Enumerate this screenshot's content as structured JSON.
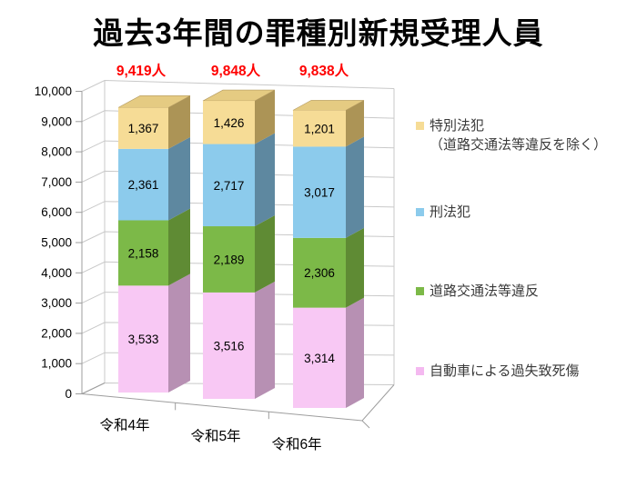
{
  "title": "過去3年間の罪種別新規受理人員",
  "chart_data": {
    "type": "bar",
    "stacked": true,
    "effect_3d": true,
    "title": "過去3年間の罪種別新規受理人員",
    "categories": [
      "令和4年",
      "令和5年",
      "令和6年"
    ],
    "series": [
      {
        "name": "自動車による過失致死傷",
        "values": [
          3533,
          3516,
          3314
        ],
        "labels": [
          "3,533",
          "3,516",
          "3,314"
        ],
        "color_front": "#F8C8F4",
        "color_side": "#B790B3"
      },
      {
        "name": "道路交通法等違反",
        "values": [
          2158,
          2189,
          2306
        ],
        "labels": [
          "2,158",
          "2,189",
          "2,306"
        ],
        "color_front": "#7CB948",
        "color_side": "#5F8B34"
      },
      {
        "name": "刑法犯",
        "values": [
          2361,
          2717,
          3017
        ],
        "labels": [
          "2,361",
          "2,717",
          "3,017"
        ],
        "color_front": "#8CCBEC",
        "color_side": "#5E88A0"
      },
      {
        "name": "特別法犯（道路交通法等違反を除く）",
        "values": [
          1367,
          1426,
          1201
        ],
        "labels": [
          "1,367",
          "1,426",
          "1,201"
        ],
        "color_front": "#F6DC96",
        "color_side": "#AC9456",
        "color_top": "#E5CB82"
      }
    ],
    "totals": [
      "9,419人",
      "9,848人",
      "9,838人"
    ],
    "total_color": "#FF0000",
    "y_axis": {
      "min": 0,
      "max": 10000,
      "step": 1000,
      "tick_labels": [
        "0",
        "1,000",
        "2,000",
        "3,000",
        "4,000",
        "5,000",
        "6,000",
        "7,000",
        "8,000",
        "9,000",
        "10,000"
      ]
    },
    "grid": true,
    "legend_position": "right",
    "grid_color": "#C9C9C9",
    "axis_color": "#9D9D9D",
    "label_color": "#000000"
  },
  "legend": {
    "items": [
      {
        "label": "特別法犯",
        "label2": "（道路交通法等違反を除く）",
        "color": "#F6DC96"
      },
      {
        "label": "刑法犯",
        "color": "#8CCBEC"
      },
      {
        "label": "道路交通法等違反",
        "color": "#7CB948"
      },
      {
        "label": "自動車による過失致死傷",
        "color": "#F4B9F0"
      }
    ]
  }
}
